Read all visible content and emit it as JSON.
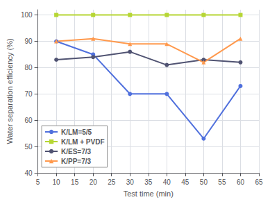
{
  "chart_data": {
    "type": "line",
    "xlabel": "Test time (min)",
    "ylabel": "Water separation efficiency (%)",
    "x": [
      10,
      20,
      30,
      40,
      50,
      60
    ],
    "series": [
      {
        "name": "K/LM=5/5",
        "values": [
          90,
          85,
          70,
          70,
          53,
          73
        ],
        "marker": "circle"
      },
      {
        "name": "K/LM + PVDF",
        "values": [
          100,
          100,
          100,
          100,
          100,
          100
        ],
        "marker": "square"
      },
      {
        "name": "K/ES=7/3",
        "values": [
          83,
          84,
          86,
          81,
          83,
          82
        ],
        "marker": "circle"
      },
      {
        "name": "K/PP=7/3",
        "values": [
          90,
          91,
          89,
          89,
          82,
          91
        ],
        "marker": "triangle"
      }
    ],
    "xlim": [
      5,
      65
    ],
    "xticks": [
      5,
      10,
      15,
      20,
      25,
      30,
      35,
      40,
      45,
      50,
      55,
      60,
      65
    ],
    "ylim": [
      40,
      102
    ],
    "yticks": [
      40,
      50,
      60,
      70,
      80,
      90,
      100
    ],
    "grid": true,
    "legend": "lower left"
  }
}
